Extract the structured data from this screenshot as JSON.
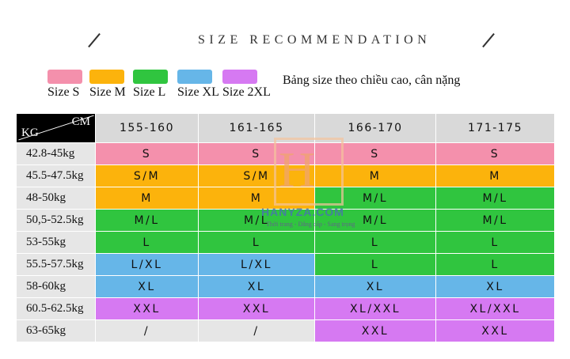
{
  "header": {
    "title": "SIZE RECOMMENDATION"
  },
  "legend": {
    "items": [
      {
        "label": "Size S",
        "color": "#f490ac"
      },
      {
        "label": "Size M",
        "color": "#fcb30c"
      },
      {
        "label": "Size L",
        "color": "#30c53f"
      },
      {
        "label": "Size XL",
        "color": "#66b6e8"
      },
      {
        "label": "Size 2XL",
        "color": "#d679f2"
      }
    ],
    "note": "Bảng size theo chiều cao, cân nặng"
  },
  "table": {
    "corner_kg": "KG",
    "corner_cm": "CM",
    "columns": [
      "155-160",
      "161-165",
      "166-170",
      "171-175"
    ],
    "rows": [
      {
        "kg": "42.8-45kg",
        "cells": [
          {
            "v": "S",
            "c": "#f490ac"
          },
          {
            "v": "S",
            "c": "#f490ac"
          },
          {
            "v": "S",
            "c": "#f490ac"
          },
          {
            "v": "S",
            "c": "#f490ac"
          }
        ]
      },
      {
        "kg": "45.5-47.5kg",
        "cells": [
          {
            "v": "S/M",
            "c": "#fcb30c"
          },
          {
            "v": "S/M",
            "c": "#fcb30c"
          },
          {
            "v": "M",
            "c": "#fcb30c"
          },
          {
            "v": "M",
            "c": "#fcb30c"
          }
        ]
      },
      {
        "kg": "48-50kg",
        "cells": [
          {
            "v": "M",
            "c": "#fcb30c"
          },
          {
            "v": "M",
            "c": "#fcb30c"
          },
          {
            "v": "M/L",
            "c": "#30c53f"
          },
          {
            "v": "M/L",
            "c": "#30c53f"
          }
        ]
      },
      {
        "kg": "50,5-52.5kg",
        "cells": [
          {
            "v": "M/L",
            "c": "#30c53f"
          },
          {
            "v": "M/L",
            "c": "#30c53f"
          },
          {
            "v": "M/L",
            "c": "#30c53f"
          },
          {
            "v": "M/L",
            "c": "#30c53f"
          }
        ]
      },
      {
        "kg": "53-55kg",
        "cells": [
          {
            "v": "L",
            "c": "#30c53f"
          },
          {
            "v": "L",
            "c": "#30c53f"
          },
          {
            "v": "L",
            "c": "#30c53f"
          },
          {
            "v": "L",
            "c": "#30c53f"
          }
        ]
      },
      {
        "kg": "55.5-57.5kg",
        "cells": [
          {
            "v": "L/XL",
            "c": "#66b6e8"
          },
          {
            "v": "L/XL",
            "c": "#66b6e8"
          },
          {
            "v": "L",
            "c": "#30c53f"
          },
          {
            "v": "L",
            "c": "#30c53f"
          }
        ]
      },
      {
        "kg": "58-60kg",
        "cells": [
          {
            "v": "XL",
            "c": "#66b6e8"
          },
          {
            "v": "XL",
            "c": "#66b6e8"
          },
          {
            "v": "XL",
            "c": "#66b6e8"
          },
          {
            "v": "XL",
            "c": "#66b6e8"
          }
        ]
      },
      {
        "kg": "60.5-62.5kg",
        "cells": [
          {
            "v": "XXL",
            "c": "#d679f2"
          },
          {
            "v": "XXL",
            "c": "#d679f2"
          },
          {
            "v": "XL/XXL",
            "c": "#d679f2"
          },
          {
            "v": "XL/XXL",
            "c": "#d679f2"
          }
        ]
      },
      {
        "kg": "63-65kg",
        "cells": [
          {
            "v": "/",
            "c": "#e6e6e6"
          },
          {
            "v": "/",
            "c": "#e6e6e6"
          },
          {
            "v": "XXL",
            "c": "#d679f2"
          },
          {
            "v": "XXL",
            "c": "#d679f2"
          }
        ]
      }
    ]
  },
  "watermark": {
    "letter": "H",
    "brand": "HANYZA.COM",
    "tagline": "Thời trang - Đẳng cấp - Sang trọng"
  }
}
